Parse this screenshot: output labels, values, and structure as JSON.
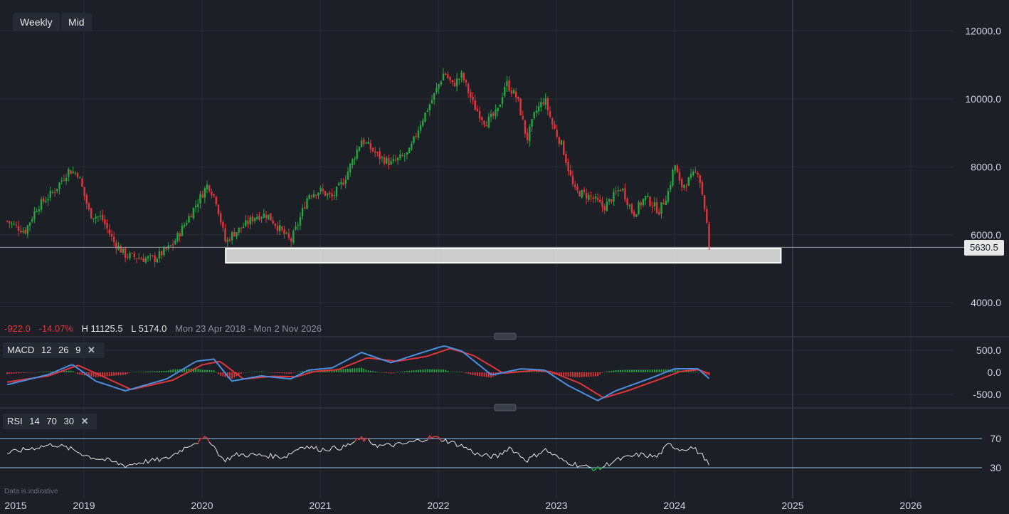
{
  "toolbar": {
    "interval": "Weekly",
    "price_type": "Mid"
  },
  "stats": {
    "change": "-922.0",
    "change_pct": "-14.07%",
    "high": "H 11125.5",
    "low": "L 5174.0",
    "range": "Mon 23 Apr 2018 - Mon 2 Nov 2026"
  },
  "last_price": "5630.5",
  "macd": {
    "name": "MACD",
    "fast": "12",
    "slow": "26",
    "signal": "9"
  },
  "rsi": {
    "name": "RSI",
    "period": "14",
    "upper": "70",
    "lower": "30"
  },
  "note": "Data is indicative",
  "colors": {
    "up": "#26a641",
    "down": "#e0363b",
    "macd_line": "#4a90e2",
    "signal_line": "#e0363b",
    "rsi_line": "#e6e6e6",
    "background": "#1c1f26"
  },
  "chart_data": [
    {
      "type": "candlestick",
      "title": "",
      "ylabel": "",
      "xlabel": "",
      "x_ticks": [
        "2015",
        "2019",
        "2020",
        "2021",
        "2022",
        "2023",
        "2024",
        "2025",
        "2026"
      ],
      "y_ticks": [
        "12000.0",
        "10000.0",
        "8000.0",
        "6000.0",
        "4000.0"
      ],
      "ylim": [
        3900,
        12600
      ],
      "high": 11125.5,
      "low": 5174.0,
      "last": 5630.5,
      "grid": true,
      "support_zone": {
        "from": 5174,
        "to": 5600,
        "start": 2020.2,
        "end": 2024.9
      },
      "anchors": [
        [
          2018.35,
          6400
        ],
        [
          2018.5,
          6100
        ],
        [
          2018.6,
          6800
        ],
        [
          2018.75,
          7300
        ],
        [
          2018.87,
          7900
        ],
        [
          2018.95,
          7800
        ],
        [
          2019.05,
          6600
        ],
        [
          2019.15,
          6500
        ],
        [
          2019.25,
          5800
        ],
        [
          2019.35,
          5400
        ],
        [
          2019.5,
          5300
        ],
        [
          2019.6,
          5300
        ],
        [
          2019.75,
          5700
        ],
        [
          2019.85,
          6300
        ],
        [
          2019.95,
          6900
        ],
        [
          2020.05,
          7500
        ],
        [
          2020.12,
          7000
        ],
        [
          2020.2,
          5750
        ],
        [
          2020.25,
          6000
        ],
        [
          2020.35,
          6250
        ],
        [
          2020.45,
          6550
        ],
        [
          2020.55,
          6600
        ],
        [
          2020.65,
          6200
        ],
        [
          2020.75,
          5800
        ],
        [
          2020.82,
          6400
        ],
        [
          2020.9,
          7200
        ],
        [
          2021.0,
          7300
        ],
        [
          2021.1,
          7100
        ],
        [
          2021.2,
          7600
        ],
        [
          2021.35,
          8800
        ],
        [
          2021.5,
          8300
        ],
        [
          2021.6,
          8100
        ],
        [
          2021.75,
          8400
        ],
        [
          2021.85,
          9300
        ],
        [
          2021.95,
          10000
        ],
        [
          2022.05,
          10800
        ],
        [
          2022.12,
          10400
        ],
        [
          2022.2,
          10700
        ],
        [
          2022.3,
          9800
        ],
        [
          2022.4,
          9300
        ],
        [
          2022.5,
          9600
        ],
        [
          2022.57,
          10500
        ],
        [
          2022.67,
          10000
        ],
        [
          2022.75,
          8800
        ],
        [
          2022.82,
          9600
        ],
        [
          2022.9,
          10000
        ],
        [
          2022.97,
          9200
        ],
        [
          2023.05,
          8600
        ],
        [
          2023.15,
          7300
        ],
        [
          2023.3,
          7100
        ],
        [
          2023.4,
          6800
        ],
        [
          2023.55,
          7400
        ],
        [
          2023.65,
          6600
        ],
        [
          2023.75,
          7100
        ],
        [
          2023.87,
          6700
        ],
        [
          2023.95,
          7300
        ],
        [
          2024.0,
          8100
        ],
        [
          2024.05,
          7400
        ],
        [
          2024.12,
          7600
        ],
        [
          2024.2,
          7900
        ],
        [
          2024.25,
          6900
        ],
        [
          2024.3,
          5630
        ]
      ]
    },
    {
      "type": "line",
      "name": "MACD",
      "ylim": [
        -650,
        650
      ],
      "y_ticks": [
        "500.0",
        "0.0",
        "-500.0"
      ],
      "macd_anchors": [
        [
          2018.35,
          -280
        ],
        [
          2018.7,
          -50
        ],
        [
          2018.9,
          180
        ],
        [
          2019.1,
          -200
        ],
        [
          2019.35,
          -420
        ],
        [
          2019.7,
          -150
        ],
        [
          2019.95,
          250
        ],
        [
          2020.1,
          300
        ],
        [
          2020.25,
          -200
        ],
        [
          2020.5,
          -80
        ],
        [
          2020.75,
          -150
        ],
        [
          2020.9,
          50
        ],
        [
          2021.1,
          100
        ],
        [
          2021.35,
          450
        ],
        [
          2021.6,
          220
        ],
        [
          2021.9,
          480
        ],
        [
          2022.05,
          600
        ],
        [
          2022.2,
          480
        ],
        [
          2022.45,
          -60
        ],
        [
          2022.7,
          80
        ],
        [
          2022.9,
          50
        ],
        [
          2023.1,
          -300
        ],
        [
          2023.35,
          -640
        ],
        [
          2023.5,
          -420
        ],
        [
          2023.8,
          -130
        ],
        [
          2024.0,
          80
        ],
        [
          2024.2,
          80
        ],
        [
          2024.3,
          -160
        ]
      ],
      "signal_anchors": [
        [
          2018.35,
          -220
        ],
        [
          2018.7,
          -80
        ],
        [
          2018.95,
          160
        ],
        [
          2019.15,
          -80
        ],
        [
          2019.4,
          -390
        ],
        [
          2019.75,
          -180
        ],
        [
          2020.0,
          170
        ],
        [
          2020.15,
          250
        ],
        [
          2020.35,
          -150
        ],
        [
          2020.6,
          -90
        ],
        [
          2020.8,
          -100
        ],
        [
          2020.95,
          20
        ],
        [
          2021.15,
          60
        ],
        [
          2021.4,
          330
        ],
        [
          2021.65,
          250
        ],
        [
          2021.9,
          360
        ],
        [
          2022.1,
          540
        ],
        [
          2022.3,
          380
        ],
        [
          2022.55,
          -20
        ],
        [
          2022.8,
          40
        ],
        [
          2022.95,
          20
        ],
        [
          2023.2,
          -250
        ],
        [
          2023.4,
          -580
        ],
        [
          2023.6,
          -420
        ],
        [
          2023.85,
          -180
        ],
        [
          2024.05,
          20
        ],
        [
          2024.2,
          60
        ],
        [
          2024.3,
          -30
        ]
      ]
    },
    {
      "type": "line",
      "name": "RSI",
      "ylim": [
        20,
        80
      ],
      "y_ticks": [
        "70",
        "30"
      ],
      "rsi_anchors": [
        [
          2018.35,
          50
        ],
        [
          2018.6,
          58
        ],
        [
          2018.75,
          62
        ],
        [
          2018.9,
          55
        ],
        [
          2019.05,
          45
        ],
        [
          2019.2,
          40
        ],
        [
          2019.35,
          33
        ],
        [
          2019.5,
          38
        ],
        [
          2019.7,
          42
        ],
        [
          2019.9,
          62
        ],
        [
          2020.05,
          71
        ],
        [
          2020.18,
          40
        ],
        [
          2020.3,
          48
        ],
        [
          2020.5,
          47
        ],
        [
          2020.7,
          45
        ],
        [
          2020.85,
          60
        ],
        [
          2021.0,
          55
        ],
        [
          2021.2,
          58
        ],
        [
          2021.35,
          70
        ],
        [
          2021.5,
          60
        ],
        [
          2021.7,
          62
        ],
        [
          2021.95,
          72
        ],
        [
          2022.05,
          68
        ],
        [
          2022.2,
          60
        ],
        [
          2022.35,
          47
        ],
        [
          2022.5,
          45
        ],
        [
          2022.6,
          58
        ],
        [
          2022.75,
          40
        ],
        [
          2022.9,
          55
        ],
        [
          2023.05,
          40
        ],
        [
          2023.2,
          33
        ],
        [
          2023.35,
          28
        ],
        [
          2023.5,
          40
        ],
        [
          2023.7,
          48
        ],
        [
          2023.85,
          45
        ],
        [
          2023.95,
          62
        ],
        [
          2024.05,
          55
        ],
        [
          2024.15,
          58
        ],
        [
          2024.25,
          45
        ],
        [
          2024.3,
          30
        ]
      ]
    }
  ]
}
